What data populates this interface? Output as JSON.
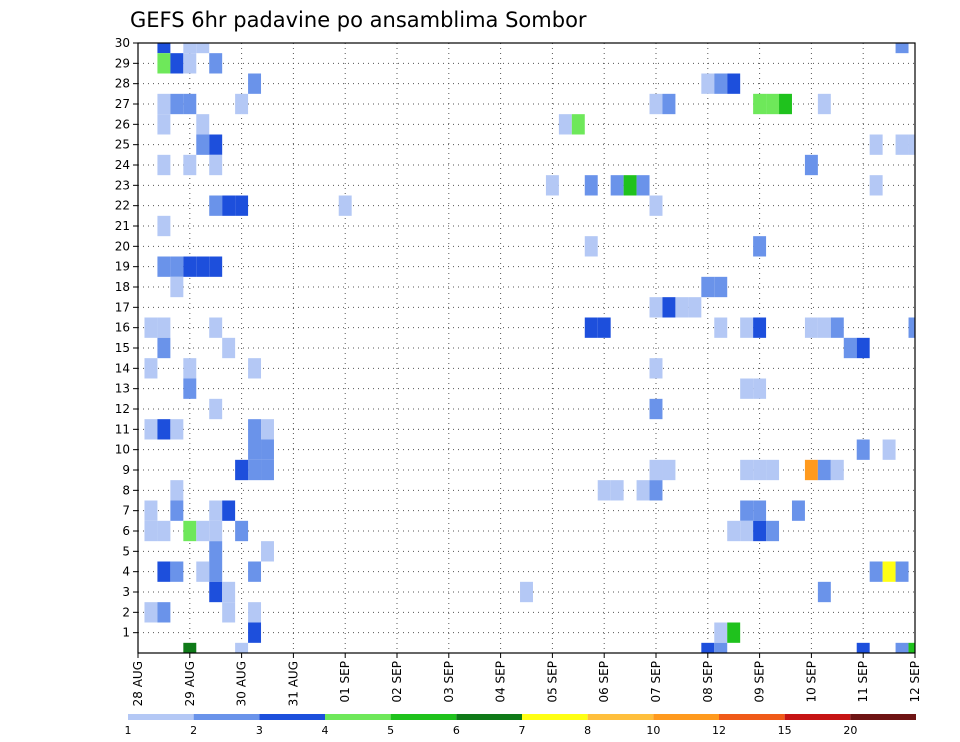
{
  "chart_data": {
    "type": "heatmap",
    "title": "GEFS 6hr padavine po ansamblima Sombor",
    "xlabel": "",
    "ylabel": "",
    "x_ticks": [
      "28 AUG",
      "29 AUG",
      "30 AUG",
      "31 AUG",
      "01 SEP",
      "02 SEP",
      "03 SEP",
      "04 SEP",
      "05 SEP",
      "06 SEP",
      "07 SEP",
      "08 SEP",
      "09 SEP",
      "10 SEP",
      "11 SEP",
      "12 SEP"
    ],
    "x_range_steps": [
      0,
      60
    ],
    "steps_per_day": 4,
    "y_ticks": [
      1,
      2,
      3,
      4,
      5,
      6,
      7,
      8,
      9,
      10,
      11,
      12,
      13,
      14,
      15,
      16,
      17,
      18,
      19,
      20,
      21,
      22,
      23,
      24,
      25,
      26,
      27,
      28,
      29,
      30
    ],
    "y_range_members": [
      0,
      30
    ],
    "grid": "dotted",
    "colorbar": {
      "placement": "bottom",
      "labels": [
        "1",
        "2",
        "3",
        "4",
        "5",
        "6",
        "7",
        "8",
        "10",
        "12",
        "15",
        "20"
      ],
      "colors": [
        "#b4c8f5",
        "#6a93ea",
        "#1d4fdc",
        "#6ee85a",
        "#1fc21d",
        "#0f7a18",
        "#ffff14",
        "#ffbf3c",
        "#ff9a1e",
        "#f05a18",
        "#c61414",
        "#6e1414"
      ]
    },
    "cells": [
      [
        30,
        2,
        3
      ],
      [
        30,
        4,
        1
      ],
      [
        30,
        5,
        1
      ],
      [
        30,
        59,
        2
      ],
      [
        29,
        2,
        4
      ],
      [
        29,
        3,
        3
      ],
      [
        29,
        4,
        1
      ],
      [
        29,
        6,
        2
      ],
      [
        28,
        9,
        2
      ],
      [
        28,
        44,
        1
      ],
      [
        28,
        45,
        2
      ],
      [
        28,
        46,
        3
      ],
      [
        27,
        2,
        1
      ],
      [
        27,
        3,
        2
      ],
      [
        27,
        4,
        2
      ],
      [
        27,
        8,
        1
      ],
      [
        27,
        40,
        1
      ],
      [
        27,
        41,
        2
      ],
      [
        27,
        48,
        4
      ],
      [
        27,
        49,
        4
      ],
      [
        27,
        50,
        5
      ],
      [
        27,
        53,
        1
      ],
      [
        26,
        2,
        1
      ],
      [
        26,
        5,
        1
      ],
      [
        26,
        33,
        1
      ],
      [
        26,
        34,
        4
      ],
      [
        25,
        5,
        2
      ],
      [
        25,
        6,
        3
      ],
      [
        25,
        57,
        1
      ],
      [
        25,
        59,
        1
      ],
      [
        25,
        60,
        1
      ],
      [
        24,
        2,
        1
      ],
      [
        24,
        4,
        1
      ],
      [
        24,
        6,
        1
      ],
      [
        24,
        52,
        2
      ],
      [
        23,
        32,
        1
      ],
      [
        23,
        35,
        2
      ],
      [
        23,
        37,
        2
      ],
      [
        23,
        38,
        5
      ],
      [
        23,
        39,
        2
      ],
      [
        23,
        57,
        1
      ],
      [
        22,
        6,
        2
      ],
      [
        22,
        7,
        3
      ],
      [
        22,
        8,
        3
      ],
      [
        22,
        16,
        1
      ],
      [
        22,
        40,
        1
      ],
      [
        21,
        2,
        1
      ],
      [
        20,
        35,
        1
      ],
      [
        20,
        48,
        2
      ],
      [
        19,
        2,
        2
      ],
      [
        19,
        3,
        2
      ],
      [
        19,
        4,
        3
      ],
      [
        19,
        5,
        3
      ],
      [
        19,
        6,
        3
      ],
      [
        18,
        3,
        1
      ],
      [
        18,
        44,
        2
      ],
      [
        18,
        45,
        2
      ],
      [
        17,
        40,
        1
      ],
      [
        17,
        41,
        3
      ],
      [
        17,
        42,
        1
      ],
      [
        17,
        43,
        1
      ],
      [
        16,
        1,
        1
      ],
      [
        16,
        2,
        1
      ],
      [
        16,
        6,
        1
      ],
      [
        16,
        35,
        3
      ],
      [
        16,
        36,
        3
      ],
      [
        16,
        45,
        1
      ],
      [
        16,
        47,
        1
      ],
      [
        16,
        48,
        3
      ],
      [
        16,
        52,
        1
      ],
      [
        16,
        53,
        1
      ],
      [
        16,
        54,
        2
      ],
      [
        16,
        60,
        2
      ],
      [
        15,
        2,
        2
      ],
      [
        15,
        7,
        1
      ],
      [
        15,
        55,
        2
      ],
      [
        15,
        56,
        3
      ],
      [
        14,
        1,
        1
      ],
      [
        14,
        4,
        1
      ],
      [
        14,
        9,
        1
      ],
      [
        14,
        40,
        1
      ],
      [
        13,
        4,
        2
      ],
      [
        13,
        47,
        1
      ],
      [
        13,
        48,
        1
      ],
      [
        12,
        6,
        1
      ],
      [
        12,
        40,
        2
      ],
      [
        11,
        1,
        1
      ],
      [
        11,
        2,
        3
      ],
      [
        11,
        3,
        1
      ],
      [
        11,
        9,
        2
      ],
      [
        11,
        10,
        1
      ],
      [
        10,
        9,
        2
      ],
      [
        10,
        10,
        2
      ],
      [
        10,
        56,
        2
      ],
      [
        10,
        58,
        1
      ],
      [
        9,
        9,
        2
      ],
      [
        9,
        10,
        2
      ],
      [
        9,
        8,
        3
      ],
      [
        9,
        40,
        1
      ],
      [
        9,
        41,
        1
      ],
      [
        9,
        47,
        1
      ],
      [
        9,
        48,
        1
      ],
      [
        9,
        49,
        1
      ],
      [
        9,
        52,
        9
      ],
      [
        9,
        53,
        2
      ],
      [
        9,
        54,
        1
      ],
      [
        8,
        3,
        1
      ],
      [
        8,
        36,
        1
      ],
      [
        8,
        37,
        1
      ],
      [
        8,
        39,
        1
      ],
      [
        8,
        40,
        2
      ],
      [
        7,
        1,
        1
      ],
      [
        7,
        3,
        2
      ],
      [
        7,
        6,
        1
      ],
      [
        7,
        7,
        3
      ],
      [
        7,
        47,
        2
      ],
      [
        7,
        48,
        2
      ],
      [
        7,
        51,
        2
      ],
      [
        6,
        1,
        1
      ],
      [
        6,
        2,
        1
      ],
      [
        6,
        4,
        4
      ],
      [
        6,
        5,
        1
      ],
      [
        6,
        6,
        1
      ],
      [
        6,
        8,
        2
      ],
      [
        6,
        46,
        1
      ],
      [
        6,
        47,
        1
      ],
      [
        6,
        48,
        3
      ],
      [
        6,
        49,
        2
      ],
      [
        5,
        6,
        2
      ],
      [
        5,
        10,
        1
      ],
      [
        4,
        2,
        3
      ],
      [
        4,
        3,
        2
      ],
      [
        4,
        5,
        1
      ],
      [
        4,
        6,
        2
      ],
      [
        4,
        9,
        2
      ],
      [
        4,
        57,
        2
      ],
      [
        4,
        58,
        7
      ],
      [
        4,
        59,
        2
      ],
      [
        3,
        6,
        3
      ],
      [
        3,
        7,
        1
      ],
      [
        3,
        30,
        1
      ],
      [
        3,
        53,
        2
      ],
      [
        2,
        1,
        1
      ],
      [
        2,
        2,
        2
      ],
      [
        2,
        7,
        1
      ],
      [
        2,
        9,
        1
      ],
      [
        1,
        9,
        3
      ],
      [
        1,
        45,
        1
      ],
      [
        1,
        46,
        5
      ],
      [
        0,
        4,
        6
      ],
      [
        0,
        8,
        1
      ],
      [
        0,
        44,
        3
      ],
      [
        0,
        45,
        2
      ],
      [
        0,
        56,
        3
      ],
      [
        0,
        59,
        2
      ],
      [
        0,
        60,
        5
      ]
    ]
  }
}
